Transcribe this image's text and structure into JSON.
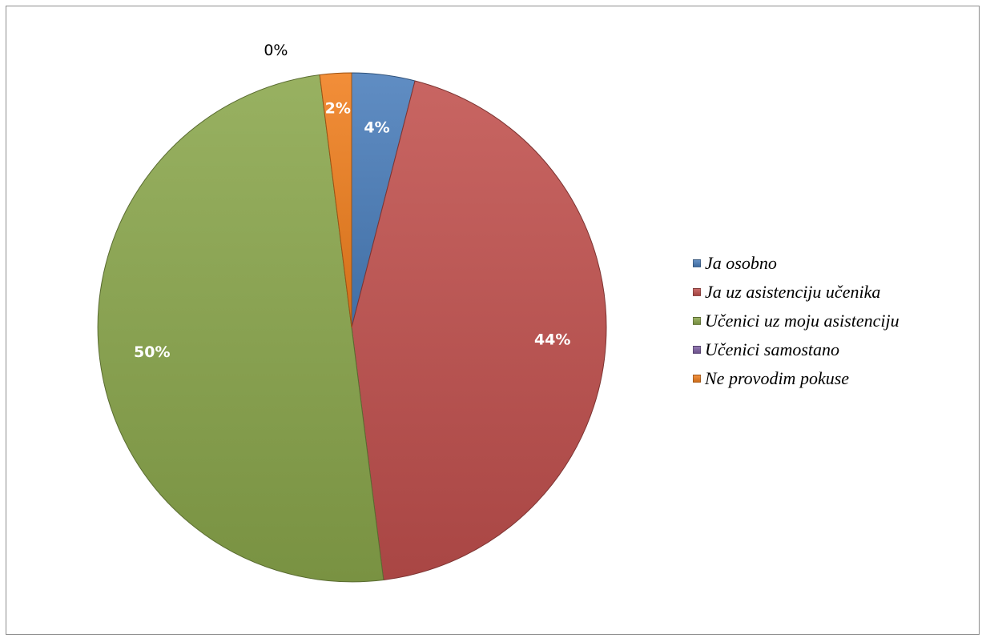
{
  "chart_data": {
    "type": "pie",
    "title": "",
    "categories": [
      "Ja osobno",
      "Ja uz asistenciju učenika",
      "Učenici uz moju asistenciju",
      "Učenici samostano",
      "Ne provodim pokuse"
    ],
    "values": [
      4,
      44,
      50,
      0,
      2
    ],
    "labels": [
      "4%",
      "44%",
      "50%",
      "0%",
      "2%"
    ],
    "colors": [
      "#4a7ebb",
      "#c0504d",
      "#8aa64b",
      "#7f61a4",
      "#f07f1e"
    ],
    "legend_position": "right"
  }
}
